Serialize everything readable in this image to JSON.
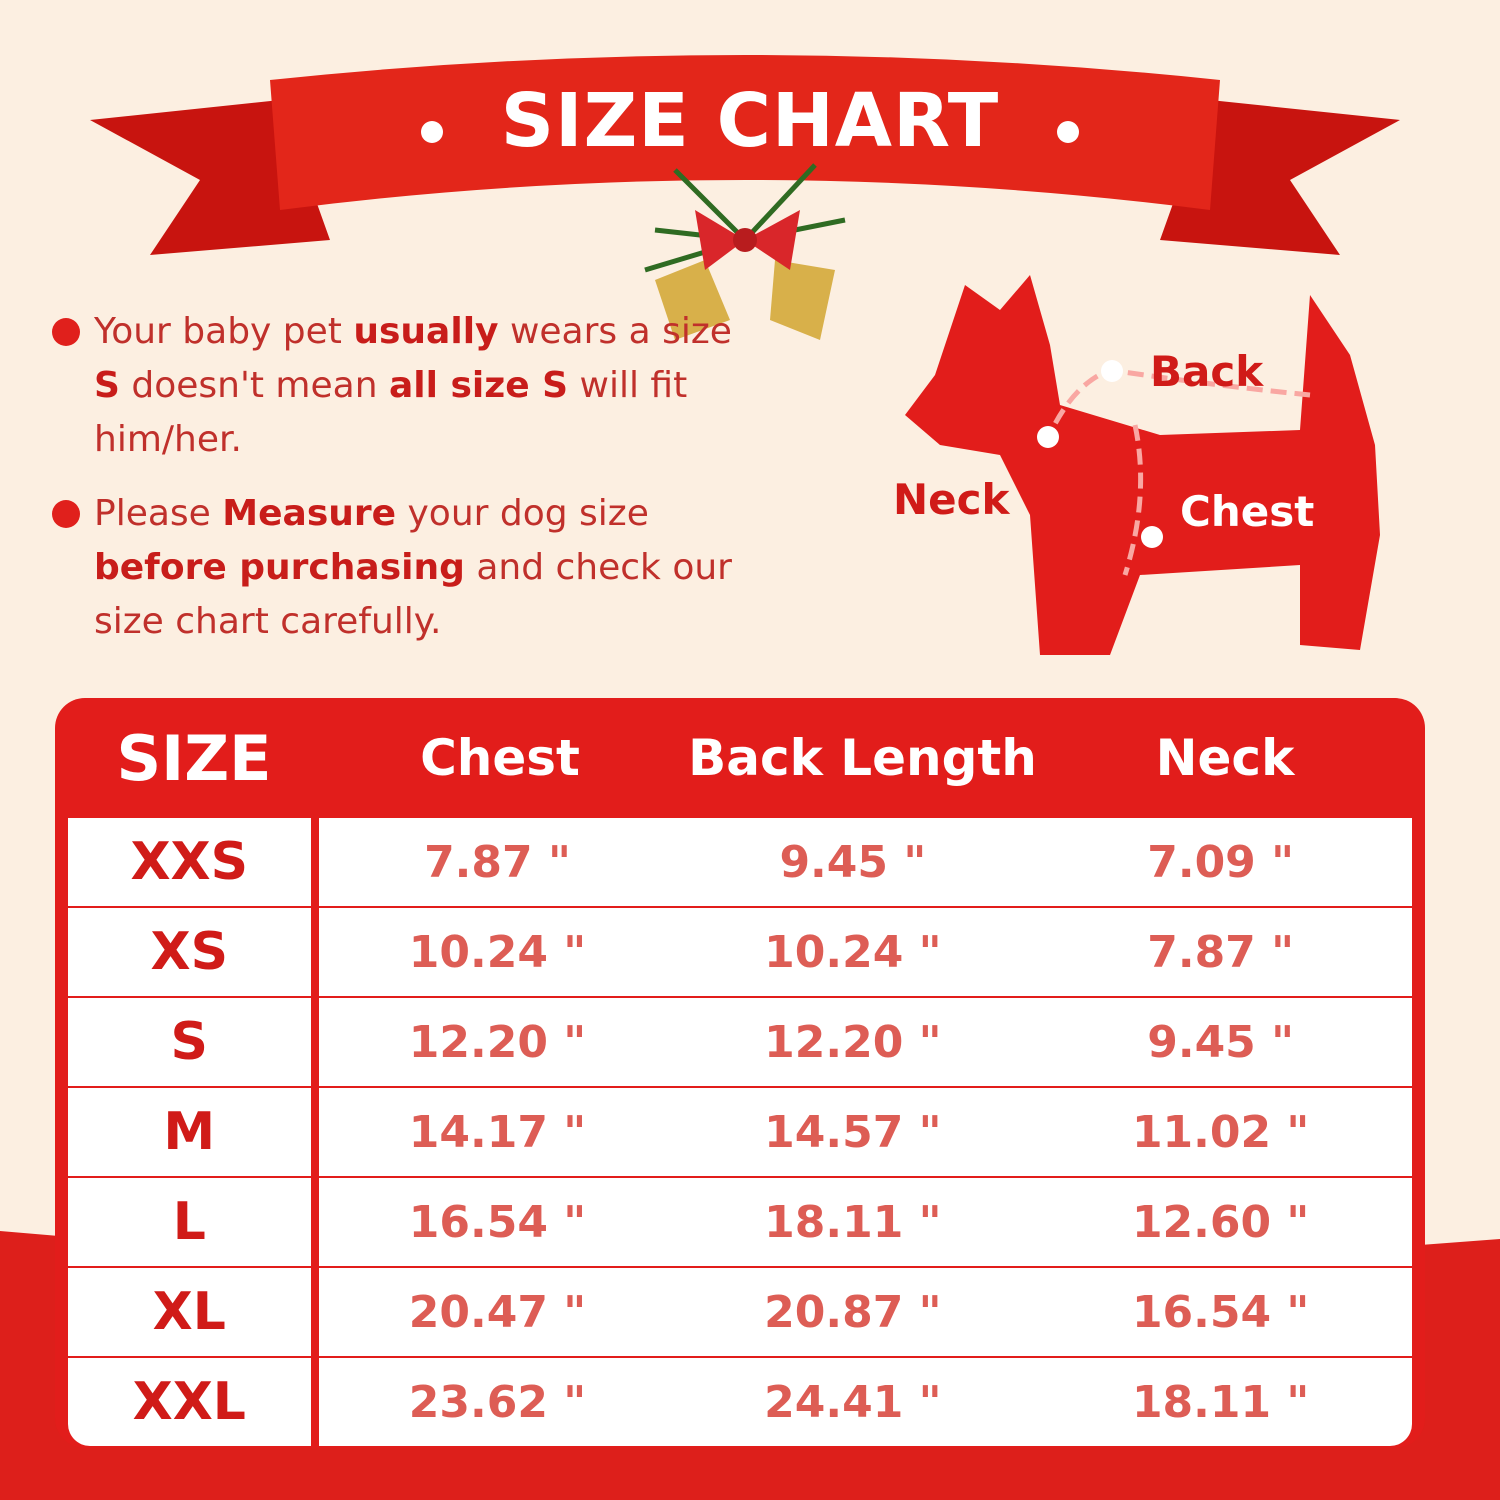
{
  "title": "SIZE CHART",
  "bullets": [
    {
      "parts": [
        [
          "Your baby pet ",
          false
        ],
        [
          "usually",
          true
        ],
        [
          " wears a size ",
          false
        ],
        [
          "S",
          true
        ],
        [
          " doesn't mean ",
          false
        ],
        [
          "all size S",
          true
        ],
        [
          " will fit him/her.",
          false
        ]
      ]
    },
    {
      "parts": [
        [
          "Please ",
          false
        ],
        [
          "Measure",
          true
        ],
        [
          " your dog size ",
          false
        ],
        [
          "before purchasing",
          true
        ],
        [
          " and check our size chart carefully.",
          false
        ]
      ]
    }
  ],
  "diagram": {
    "back": "Back",
    "neck": "Neck",
    "chest": "Chest"
  },
  "table": {
    "headers": [
      "SIZE",
      "Chest",
      "Back Length",
      "Neck"
    ],
    "rows": [
      [
        "XXS",
        "7.87 \"",
        "9.45 \"",
        "7.09 \""
      ],
      [
        "XS",
        "10.24 \"",
        "10.24 \"",
        "7.87 \""
      ],
      [
        "S",
        "12.20 \"",
        "12.20 \"",
        "9.45 \""
      ],
      [
        "M",
        "14.17 \"",
        "14.57 \"",
        "11.02 \""
      ],
      [
        "L",
        "16.54 \"",
        "18.11 \"",
        "12.60 \""
      ],
      [
        "XL",
        "20.47 \"",
        "20.87 \"",
        "16.54 \""
      ],
      [
        "XXL",
        "23.62 \"",
        "24.41 \"",
        "18.11 \""
      ]
    ]
  },
  "colors": {
    "accent": "#e21d1b",
    "background": "#fcefe1",
    "value_text": "#dd5d55"
  }
}
